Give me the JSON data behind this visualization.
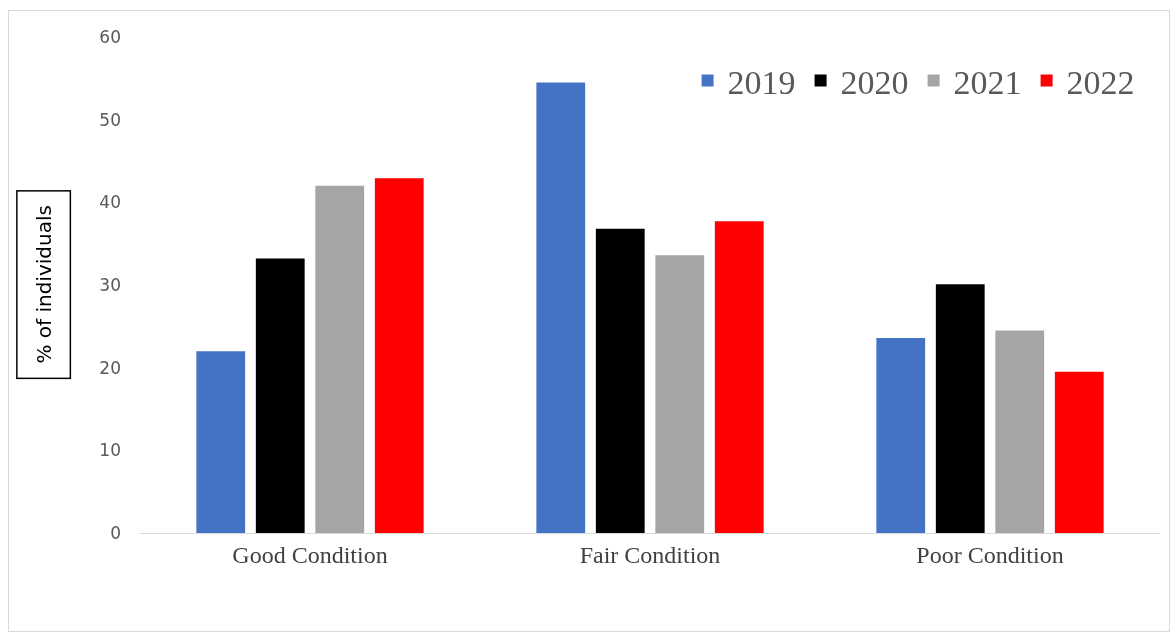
{
  "chart_data": {
    "type": "bar",
    "ylabel": "% of individuals",
    "categories": [
      "Good Condition",
      "Fair Condition",
      "Poor Condition"
    ],
    "series": [
      {
        "name": "2019",
        "color": "#4472c4",
        "values": [
          22.0,
          54.5,
          23.6
        ]
      },
      {
        "name": "2020",
        "color": "#000000",
        "values": [
          33.2,
          36.8,
          30.1
        ]
      },
      {
        "name": "2021",
        "color": "#a5a5a5",
        "values": [
          42.0,
          33.6,
          24.5
        ]
      },
      {
        "name": "2022",
        "color": "#ff0000",
        "values": [
          42.9,
          37.7,
          19.5
        ]
      }
    ],
    "ylim": [
      0,
      60
    ],
    "yticks": [
      0,
      10,
      20,
      30,
      40,
      50,
      60
    ],
    "grid": false,
    "legend": "top right"
  }
}
